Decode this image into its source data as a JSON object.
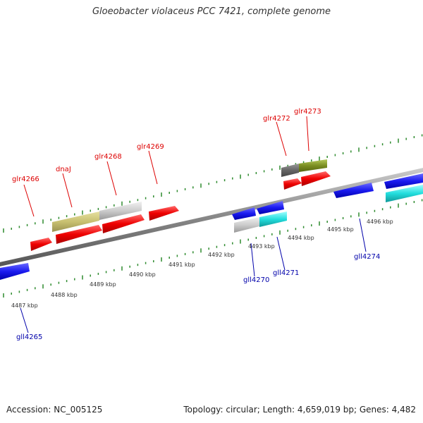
{
  "title": "Gloeobacter violaceus PCC 7421, complete genome",
  "footer": {
    "accession": "Accession: NC_005125",
    "topology": "Topology: circular; Length: 4,659,019 bp; Genes: 4,482"
  },
  "colors": {
    "forward_label": "#dd0000",
    "reverse_label": "#0000aa",
    "backbone": "#888888",
    "ticks": "#2e8b2e"
  },
  "scale": {
    "unit": "kbp",
    "ticks": [
      {
        "value": 4487,
        "label": "4487 kbp"
      },
      {
        "value": 4488,
        "label": "4488 kbp"
      },
      {
        "value": 4489,
        "label": "4489 kbp"
      },
      {
        "value": 4490,
        "label": "4490 kbp"
      },
      {
        "value": 4491,
        "label": "4491 kbp"
      },
      {
        "value": 4492,
        "label": "4492 kbp"
      },
      {
        "value": 4493,
        "label": "4493 kbp"
      },
      {
        "value": 4494,
        "label": "4494 kbp"
      },
      {
        "value": 4495,
        "label": "4495 kbp"
      },
      {
        "value": 4496,
        "label": "4496 kbp"
      }
    ]
  },
  "forward_labels": [
    "glr4266",
    "dnaJ",
    "glr4268",
    "glr4269",
    "glr4272",
    "glr4273"
  ],
  "reverse_labels": [
    "gll4265",
    "gll4270",
    "gll4271",
    "gll4274"
  ]
}
